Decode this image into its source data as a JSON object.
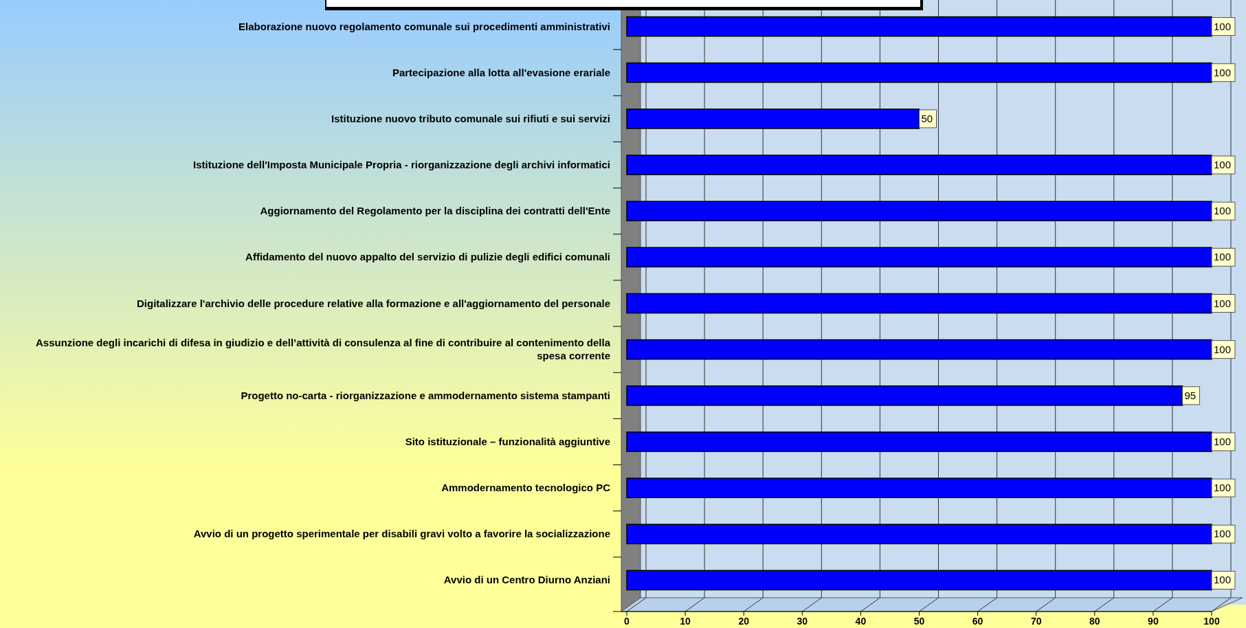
{
  "chart_data": {
    "type": "bar",
    "orientation": "horizontal",
    "categories": [
      "Elaborazione nuovo regolamento comunale sui procedimenti amministrativi",
      "Partecipazione alla lotta all'evasione erariale",
      "Istituzione nuovo tributo comunale sui rifiuti e sui servizi",
      "Istituzione dell'Imposta Municipale Propria - riorganizzazione degli archivi informatici",
      "Aggiornamento del Regolamento per la disciplina dei contratti dell'Ente",
      "Affidamento del nuovo appalto del servizio di pulizie degli edifici comunali",
      "Digitalizzare l'archivio delle procedure relative alla formazione e all'aggiornamento del personale",
      "Assunzione degli incarichi di difesa in giudizio e dell’attività di consulenza al fine di contribuire al contenimento della spesa corrente",
      "Progetto no-carta - riorganizzazione e ammodernamento sistema stampanti",
      "Sito istituzionale – funzionalità aggiuntive",
      "Ammodernamento tecnologico PC",
      "Avvio di un progetto sperimentale per disabili gravi volto a favorire la socializzazione",
      "Avvio di un Centro Diurno Anziani"
    ],
    "values": [
      100,
      100,
      50,
      100,
      100,
      100,
      100,
      100,
      95,
      100,
      100,
      100,
      100
    ],
    "color": "#0000ff",
    "data_labels": true,
    "grid": "x",
    "xlim": [
      0,
      100
    ],
    "xticks": [
      0,
      10,
      20,
      30,
      40,
      50,
      60,
      70,
      80,
      90,
      100
    ]
  }
}
